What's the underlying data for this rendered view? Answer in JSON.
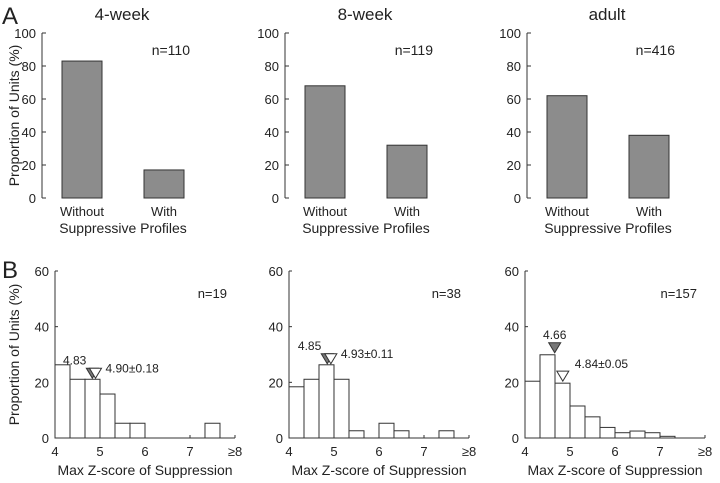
{
  "panel_labels": [
    "A",
    "B"
  ],
  "chart_data": [
    {
      "type": "bar",
      "panel": "A",
      "title": "4-week",
      "n_label": "n=110",
      "categories": [
        "Without",
        "With"
      ],
      "values": [
        83,
        17
      ],
      "xlabel": "Suppressive Profiles",
      "ylabel": "Proportion of Units (%)",
      "ylim": [
        0,
        100
      ],
      "yticks": [
        0,
        20,
        40,
        60,
        80,
        100
      ],
      "bar_color": "#8c8c8c"
    },
    {
      "type": "bar",
      "panel": "A",
      "title": "8-week",
      "n_label": "n=119",
      "categories": [
        "Without",
        "With"
      ],
      "values": [
        68,
        32
      ],
      "xlabel": "Suppressive Profiles",
      "ylabel": "",
      "ylim": [
        0,
        100
      ],
      "yticks": [
        0,
        20,
        40,
        60,
        80,
        100
      ],
      "bar_color": "#8c8c8c"
    },
    {
      "type": "bar",
      "panel": "A",
      "title": "adult",
      "n_label": "n=416",
      "categories": [
        "Without",
        "With"
      ],
      "values": [
        62,
        38
      ],
      "xlabel": "Suppressive Profiles",
      "ylabel": "",
      "ylim": [
        0,
        100
      ],
      "yticks": [
        0,
        20,
        40,
        60,
        80,
        100
      ],
      "bar_color": "#8c8c8c"
    },
    {
      "type": "bar",
      "panel": "B",
      "n_label": "n=19",
      "bin_start": 4,
      "bin_width": 0.3333,
      "values": [
        26.3,
        21.1,
        21.1,
        15.8,
        5.3,
        5.3,
        0,
        0,
        0,
        0,
        5.3,
        0
      ],
      "xlabel": "Max Z-score of Suppression",
      "ylabel": "Proportion of Units (%)",
      "xlim": [
        4,
        8
      ],
      "ylim": [
        0,
        60
      ],
      "xticks": [
        "4",
        "5",
        "6",
        "7",
        "≥8"
      ],
      "yticks": [
        0,
        20,
        40,
        60
      ],
      "median": 4.83,
      "median_label": "4.83",
      "mean": 4.9,
      "mean_label": "4.90±0.18"
    },
    {
      "type": "bar",
      "panel": "B",
      "n_label": "n=38",
      "bin_start": 4,
      "bin_width": 0.3333,
      "values": [
        18.4,
        21.1,
        26.3,
        21.1,
        2.6,
        0,
        5.3,
        2.6,
        0,
        0,
        2.6,
        0
      ],
      "xlabel": "Max Z-score of Suppression",
      "ylabel": "",
      "xlim": [
        4,
        8
      ],
      "ylim": [
        0,
        60
      ],
      "xticks": [
        "4",
        "5",
        "6",
        "7",
        "≥8"
      ],
      "yticks": [
        0,
        20,
        40,
        60
      ],
      "median": 4.85,
      "median_label": "4.85",
      "mean": 4.93,
      "mean_label": "4.93±0.11"
    },
    {
      "type": "bar",
      "panel": "B",
      "n_label": "n=157",
      "bin_start": 4,
      "bin_width": 0.3333,
      "values": [
        20.4,
        29.9,
        19.7,
        11.5,
        7.6,
        3.8,
        1.9,
        2.5,
        1.9,
        0.6,
        0,
        0
      ],
      "xlabel": "Max Z-score of Suppression",
      "ylabel": "",
      "xlim": [
        4,
        8
      ],
      "ylim": [
        0,
        60
      ],
      "xticks": [
        "4",
        "5",
        "6",
        "7",
        "≥8"
      ],
      "yticks": [
        0,
        20,
        40,
        60
      ],
      "median": 4.66,
      "median_label": "4.66",
      "mean": 4.84,
      "mean_label": "4.84±0.05"
    }
  ]
}
